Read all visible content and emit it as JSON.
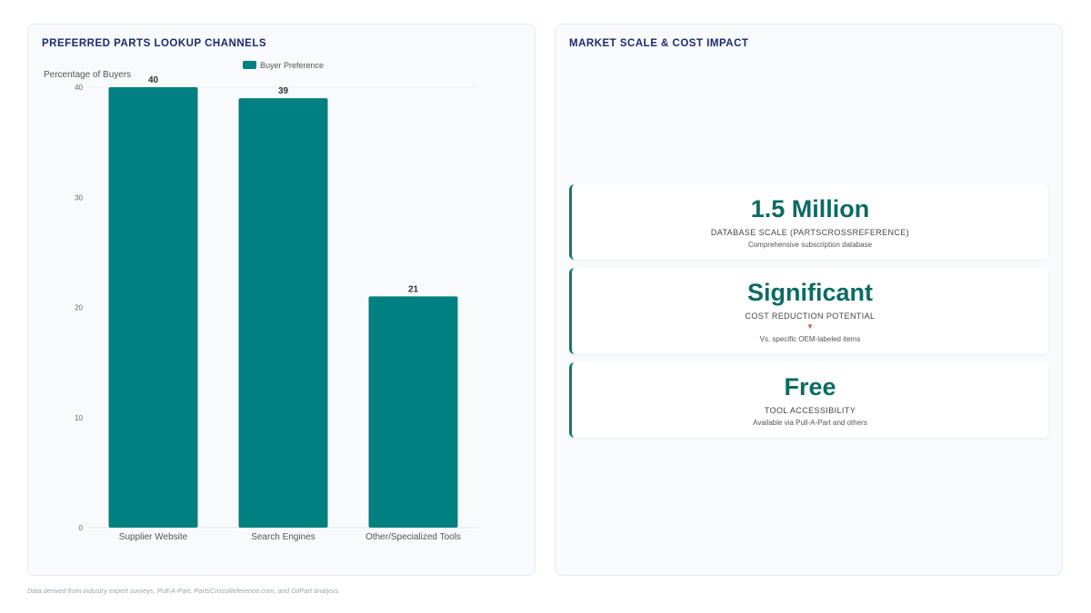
{
  "left_panel": {
    "title": "PREFERRED PARTS LOOKUP CHANNELS"
  },
  "right_panel": {
    "title": "MARKET SCALE & COST IMPACT",
    "cards": [
      {
        "value": "1.5 Million",
        "label": "DATABASE SCALE (PARTSCROSSREFERENCE)",
        "arrow": "",
        "sub": "Comprehensive subscription database"
      },
      {
        "value": "Significant",
        "label": "COST REDUCTION POTENTIAL",
        "arrow": "▼",
        "sub": "Vs. specific OEM-labeled items"
      },
      {
        "value": "Free",
        "label": "TOOL ACCESSIBILITY",
        "arrow": "",
        "sub": "Available via Pull-A-Part and others"
      }
    ]
  },
  "footnote": "Data derived from industry expert surveys, Pull-A-Part, PartsCrossReference.com, and GilPart analysis.",
  "colors": {
    "bar": "#008080",
    "accent": "#0e7a6e",
    "title": "#1e2a6b",
    "value": "#0b6b63",
    "arrow": "#e05252"
  },
  "chart_data": {
    "type": "bar",
    "categories": [
      "Supplier Website",
      "Search Engines",
      "Other/Specialized Tools"
    ],
    "series": [
      {
        "name": "Buyer Preference",
        "values": [
          40,
          39,
          21
        ]
      }
    ],
    "ylabel": "Percentage of Buyers",
    "ylim": [
      0,
      40
    ],
    "yticks": [
      0,
      10,
      20,
      30,
      40
    ],
    "grid": false,
    "legend": "top-center",
    "data_labels": true
  }
}
